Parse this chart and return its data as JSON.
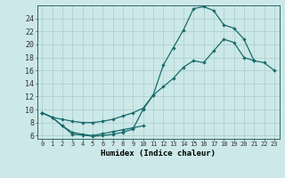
{
  "xlabel": "Humidex (Indice chaleur)",
  "background_color": "#cce8e8",
  "grid_color": "#aacccc",
  "line_color": "#1a6b6b",
  "xlim": [
    -0.5,
    23.5
  ],
  "ylim": [
    5.5,
    26.0
  ],
  "xticks": [
    0,
    1,
    2,
    3,
    4,
    5,
    6,
    7,
    8,
    9,
    10,
    11,
    12,
    13,
    14,
    15,
    16,
    17,
    18,
    19,
    20,
    21,
    22,
    23
  ],
  "yticks": [
    6,
    8,
    10,
    12,
    14,
    16,
    18,
    20,
    22,
    24
  ],
  "line1_x": [
    0,
    1,
    2,
    3,
    4,
    5,
    6,
    7,
    8,
    9,
    10,
    11,
    12,
    13,
    14,
    15,
    16,
    17,
    18,
    19,
    20,
    21
  ],
  "line1_y": [
    9.5,
    8.8,
    7.5,
    6.2,
    6.1,
    5.9,
    6.0,
    6.2,
    6.5,
    7.0,
    10.0,
    12.2,
    16.8,
    19.5,
    22.2,
    25.5,
    25.8,
    25.2,
    23.0,
    22.5,
    20.8,
    17.5
  ],
  "line2_x": [
    0,
    1,
    2,
    3,
    4,
    5,
    6,
    7,
    8,
    9,
    10,
    11,
    12,
    13,
    14,
    15,
    16,
    17,
    18,
    19,
    20,
    21,
    22,
    23
  ],
  "line2_y": [
    9.5,
    8.8,
    8.5,
    8.2,
    8.0,
    8.0,
    8.2,
    8.5,
    9.0,
    9.5,
    10.2,
    12.2,
    13.5,
    14.8,
    16.5,
    17.5,
    17.2,
    19.0,
    20.8,
    20.3,
    18.0,
    17.5,
    17.2,
    16.0
  ],
  "line3_x": [
    0,
    1,
    2,
    3,
    4,
    5,
    6,
    7,
    8,
    9,
    10
  ],
  "line3_y": [
    9.5,
    8.8,
    7.5,
    6.5,
    6.2,
    6.0,
    6.3,
    6.6,
    6.9,
    7.2,
    7.5
  ]
}
